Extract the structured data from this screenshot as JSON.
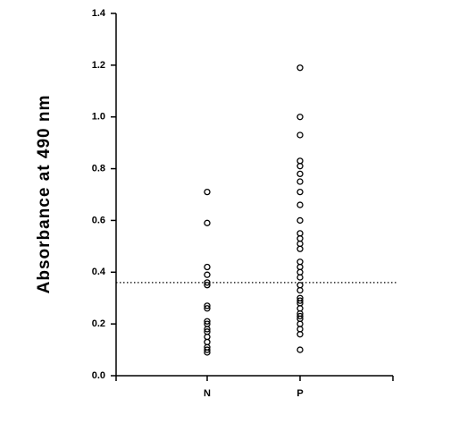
{
  "chart_data": {
    "type": "strip",
    "y_label": "Absorbance at 490 nm",
    "categories": [
      "N",
      "P"
    ],
    "values": [
      [
        0.71,
        0.59,
        0.42,
        0.39,
        0.36,
        0.35,
        0.27,
        0.26,
        0.21,
        0.2,
        0.18,
        0.17,
        0.15,
        0.13,
        0.11,
        0.1,
        0.09
      ],
      [
        1.19,
        1.0,
        0.93,
        0.83,
        0.81,
        0.78,
        0.75,
        0.71,
        0.66,
        0.6,
        0.55,
        0.53,
        0.51,
        0.49,
        0.44,
        0.42,
        0.4,
        0.38,
        0.35,
        0.33,
        0.3,
        0.29,
        0.28,
        0.26,
        0.24,
        0.23,
        0.22,
        0.2,
        0.18,
        0.16,
        0.1
      ]
    ],
    "reference_line": 0.36,
    "color": "#000000",
    "ylim": [
      0,
      1.4
    ],
    "yticks": [
      {
        "value": 0,
        "label": "0.0"
      },
      0.2,
      0.4,
      0.6,
      0.8,
      {
        "value": 1,
        "label": "1.0"
      },
      1.2,
      1.4
    ]
  }
}
